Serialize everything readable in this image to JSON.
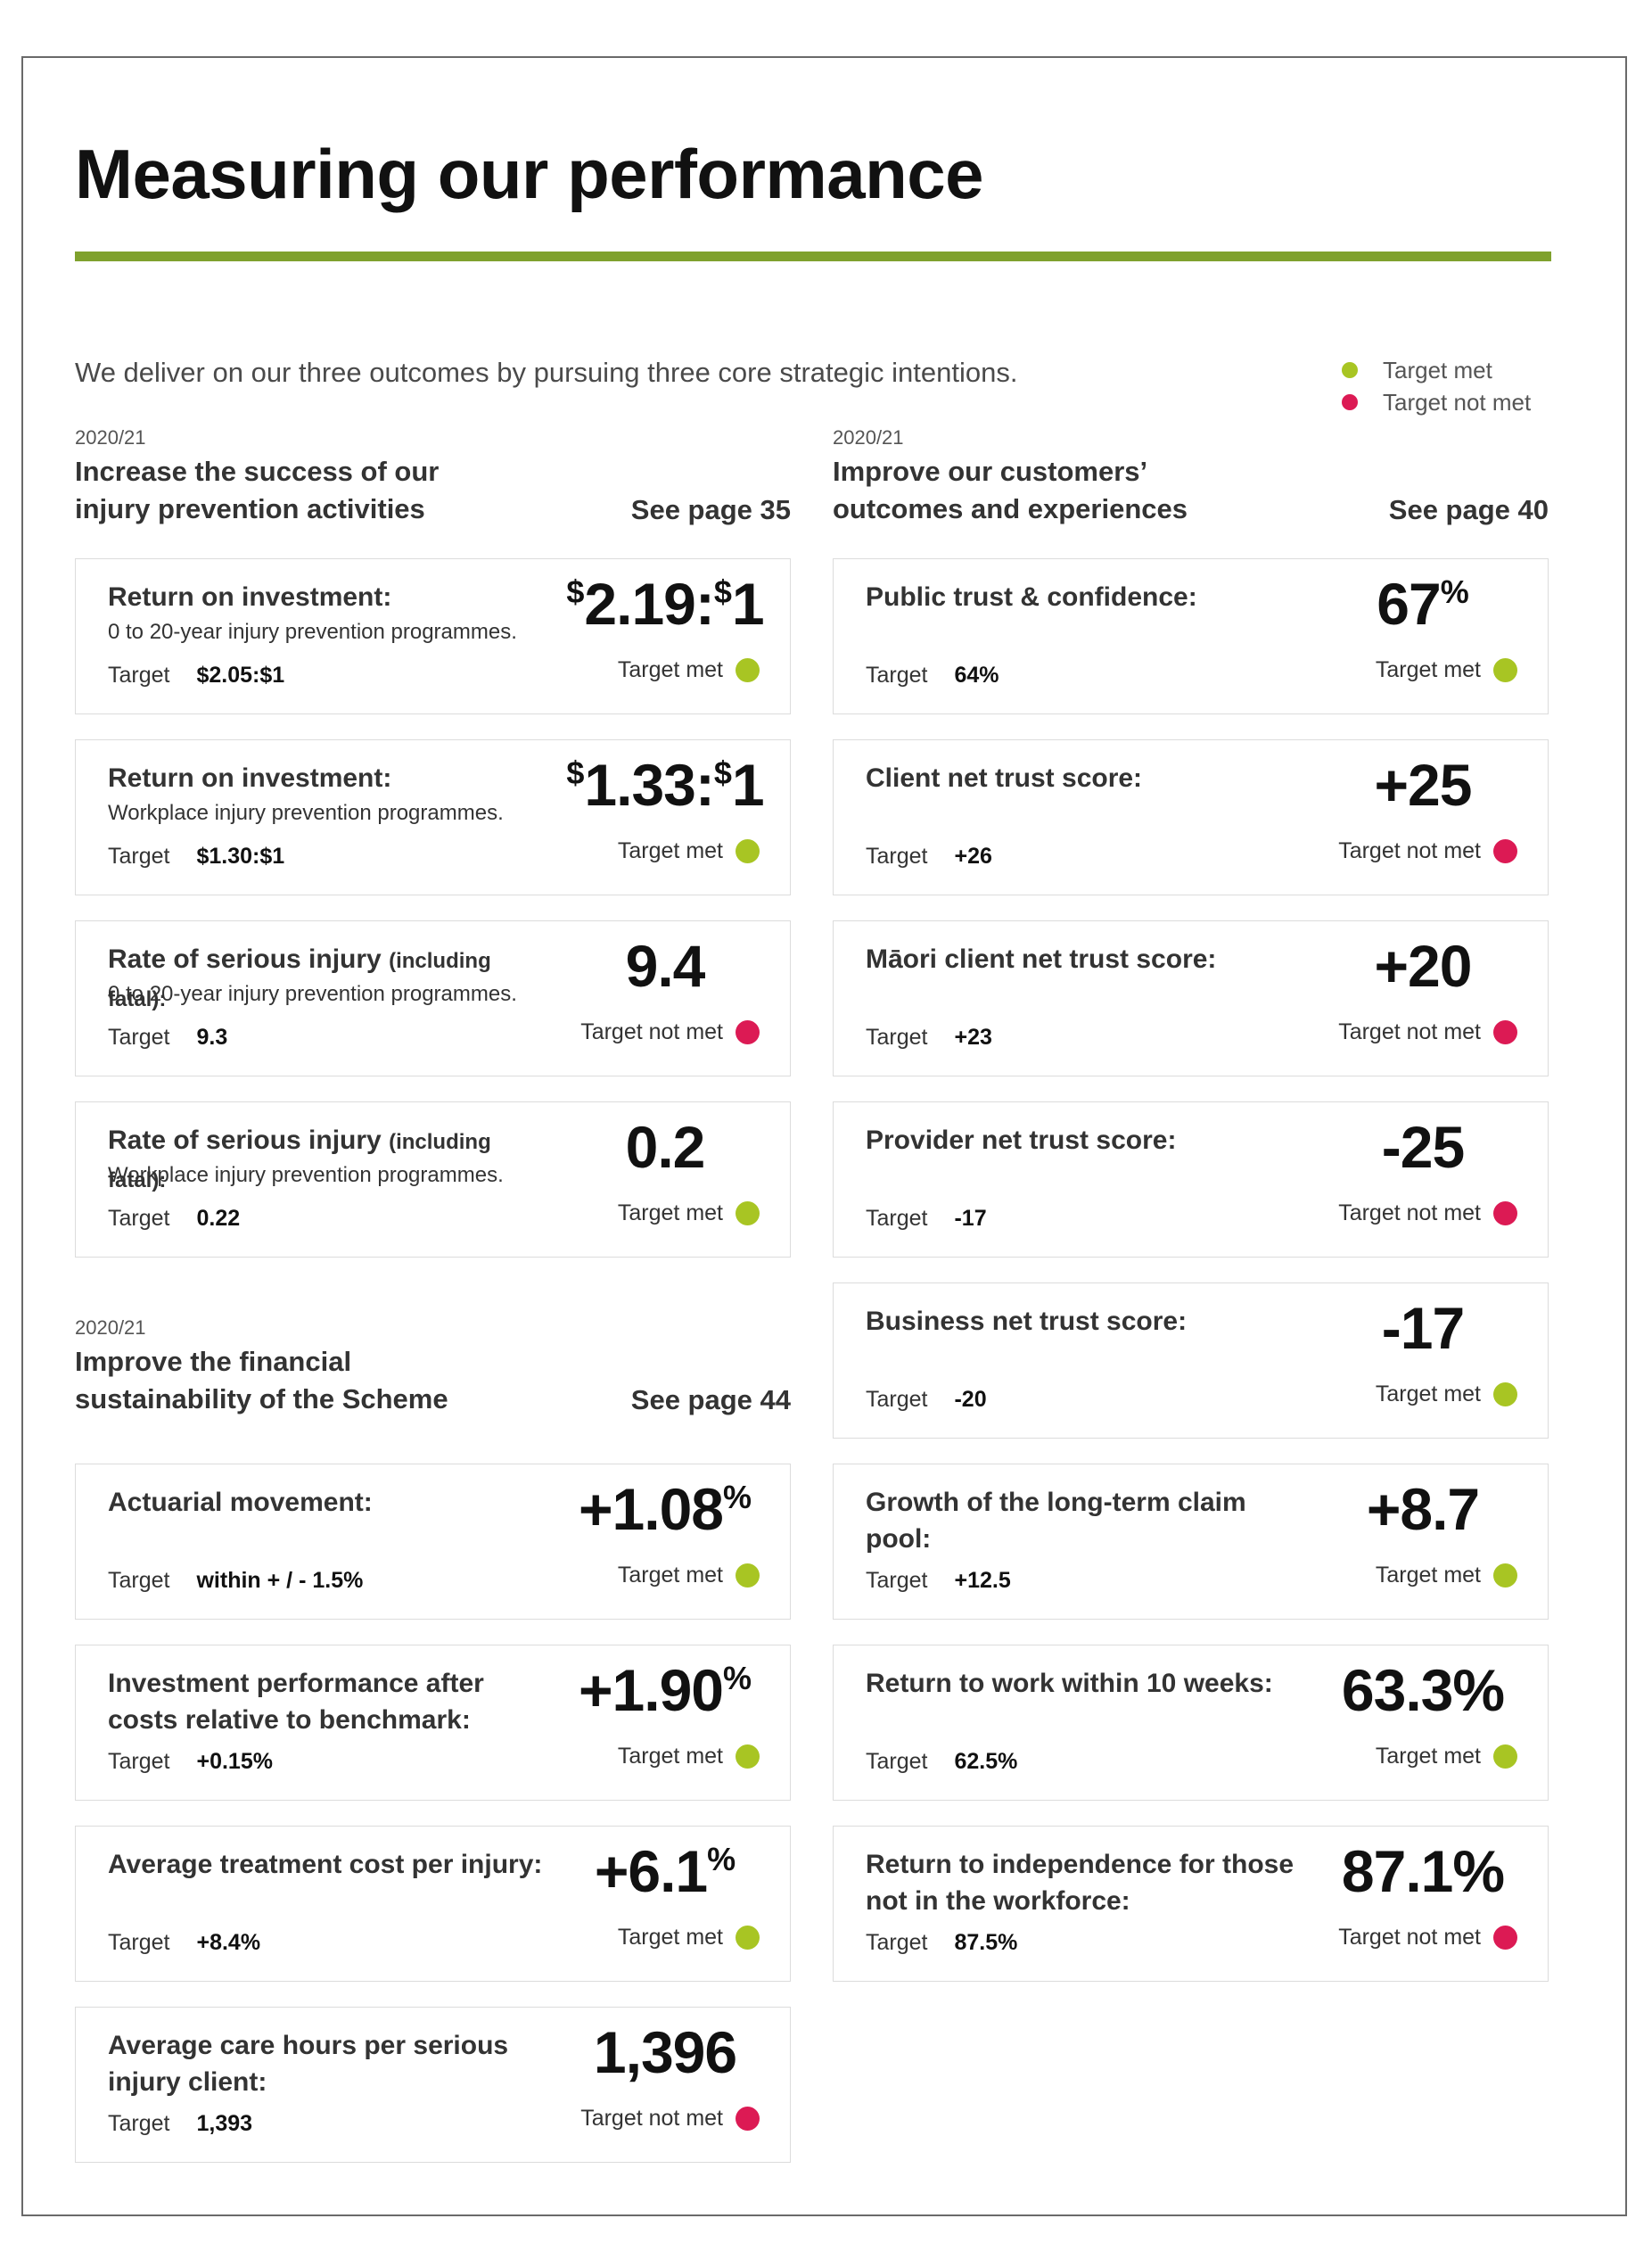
{
  "title": "Measuring our performance",
  "intro": "We deliver on our three outcomes by pursuing three core strategic intentions.",
  "legend": {
    "met": "Target met",
    "not_met": "Target not met"
  },
  "colors": {
    "accent_rule": "#7fa12d",
    "met": "#a8c523",
    "not_met": "#dc1a54"
  },
  "target_label": "Target",
  "sections": [
    {
      "year": "2020/21",
      "title": "Increase the success of our injury prevention activities",
      "see": "See page 35",
      "cards": [
        {
          "label": "Return on investment:",
          "sub": "0 to 20-year injury prevention programmes.",
          "target": "$2.05:$1",
          "value": "2.19:",
          "value_pre": "$",
          "value_mid": "$",
          "value_post": "1",
          "status": "Target met",
          "met": true
        },
        {
          "label": "Return on investment:",
          "sub": "Workplace injury prevention programmes.",
          "target": "$1.30:$1",
          "value": "1.33:",
          "value_pre": "$",
          "value_mid": "$",
          "value_post": "1",
          "status": "Target met",
          "met": true
        },
        {
          "label": "Rate of serious injury ",
          "label_paren": "(including fatal):",
          "sub": "0 to 20-year injury prevention programmes.",
          "target": "9.3",
          "value": "9.4",
          "status": "Target not met",
          "met": false
        },
        {
          "label": "Rate of serious injury ",
          "label_paren": "(including fatal):",
          "sub": "Workplace injury prevention programmes.",
          "target": "0.22",
          "value": "0.2",
          "status": "Target met",
          "met": true
        }
      ]
    },
    {
      "year": "2020/21",
      "title": "Improve the financial sustainability of the Scheme",
      "see": "See page 44",
      "cards": [
        {
          "label": "Actuarial movement:",
          "target": "within + / - 1.5%",
          "value": "+1.08",
          "value_sup": "%",
          "status": "Target met",
          "met": true
        },
        {
          "label": "Investment performance after costs relative to benchmark:",
          "target": "+0.15%",
          "value": "+1.90",
          "value_sup": "%",
          "status": "Target met",
          "met": true
        },
        {
          "label": "Average treatment cost per injury:",
          "target": "+8.4%",
          "value": "+6.1",
          "value_sup": "%",
          "status": "Target met",
          "met": true
        },
        {
          "label": "Average care hours per serious injury client:",
          "target": "1,393",
          "value": "1,396",
          "status": "Target not met",
          "met": false
        }
      ]
    },
    {
      "year": "2020/21",
      "title": "Improve our customers’ outcomes and experiences",
      "see": "See page 40",
      "cards": [
        {
          "label": "Public trust & confidence:",
          "target": "64%",
          "value": "67",
          "value_sup": "%",
          "status": "Target met",
          "met": true
        },
        {
          "label": "Client net trust score:",
          "target": "+26",
          "value": "+25",
          "status": "Target not met",
          "met": false
        },
        {
          "label": "Māori client net trust score:",
          "target": "+23",
          "value": "+20",
          "status": "Target not met",
          "met": false
        },
        {
          "label": "Provider net trust score:",
          "target": "-17",
          "value": "-25",
          "status": "Target not met",
          "met": false
        },
        {
          "label": "Business net trust score:",
          "target": "-20",
          "value": "-17",
          "status": "Target met",
          "met": true
        },
        {
          "label": "Growth of the long-term claim pool:",
          "target": "+12.5",
          "value": "+8.7",
          "status": "Target met",
          "met": true
        },
        {
          "label": "Return to work within 10 weeks:",
          "target": "62.5%",
          "value": "63.3%",
          "status": "Target met",
          "met": true
        },
        {
          "label": "Return to independence for those not in the workforce:",
          "target": "87.5%",
          "value": "87.1%",
          "status": "Target not met",
          "met": false
        }
      ]
    }
  ]
}
